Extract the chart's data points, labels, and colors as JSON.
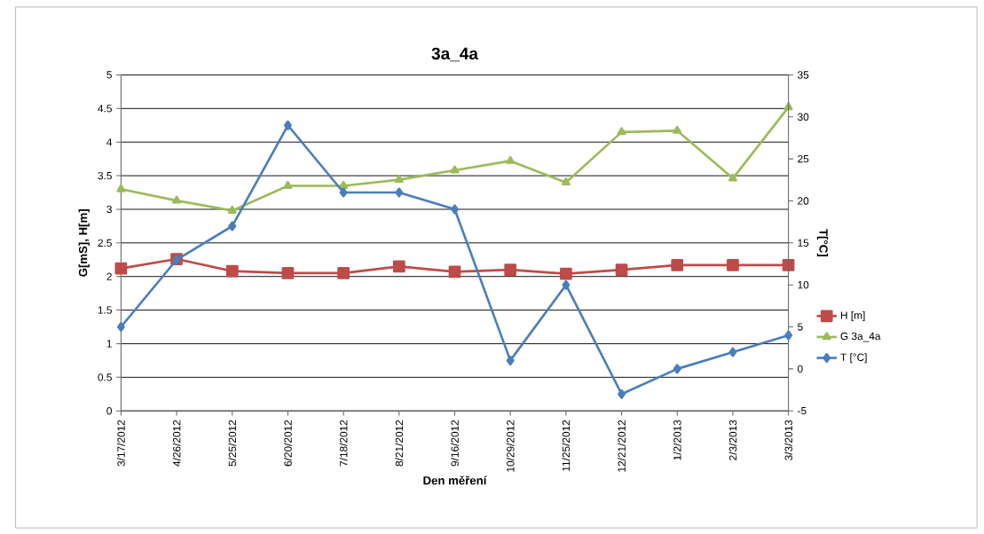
{
  "chart_data": {
    "type": "line",
    "title": "3a_4a",
    "xlabel": "Den měření",
    "ylabel": "G[mS], H[m]",
    "y2label": "T[°C]",
    "categories": [
      "3/17/2012",
      "4/26/2012",
      "5/25/2012",
      "6/20/2012",
      "7/18/2012",
      "8/21/2012",
      "9/16/2012",
      "10/29/2012",
      "11/25/2012",
      "12/21/2012",
      "1/2/2013",
      "2/3/2013",
      "3/3/2013"
    ],
    "series": [
      {
        "name": "H [m]",
        "color": "#be4b48",
        "marker": "square",
        "values": [
          2.12,
          2.26,
          2.08,
          2.05,
          2.05,
          2.15,
          2.07,
          2.1,
          2.04,
          2.1,
          2.17,
          2.17,
          2.17
        ]
      },
      {
        "name": "G 3a_4a",
        "color": "#9bbb59",
        "marker": "triangle",
        "values": [
          3.3,
          3.13,
          2.98,
          3.35,
          3.35,
          3.44,
          3.58,
          3.72,
          3.4,
          4.15,
          4.17,
          3.46,
          4.52
        ]
      },
      {
        "name": "T [°C]",
        "color": "#4a7ebb",
        "marker": "diamond",
        "axis": "y2",
        "values": [
          5,
          13,
          17,
          29,
          21,
          21,
          19,
          1,
          10,
          -3,
          0,
          2,
          4
        ]
      }
    ],
    "ylim": [
      0,
      5
    ],
    "yticks": [
      0,
      0.5,
      1,
      1.5,
      2,
      2.5,
      3,
      3.5,
      4,
      4.5,
      5
    ],
    "y2lim": [
      -5,
      35
    ],
    "y2ticks": [
      -5,
      0,
      5,
      10,
      15,
      20,
      25,
      30,
      35
    ],
    "grid": "y",
    "legend": "right",
    "line_style": "solid"
  }
}
